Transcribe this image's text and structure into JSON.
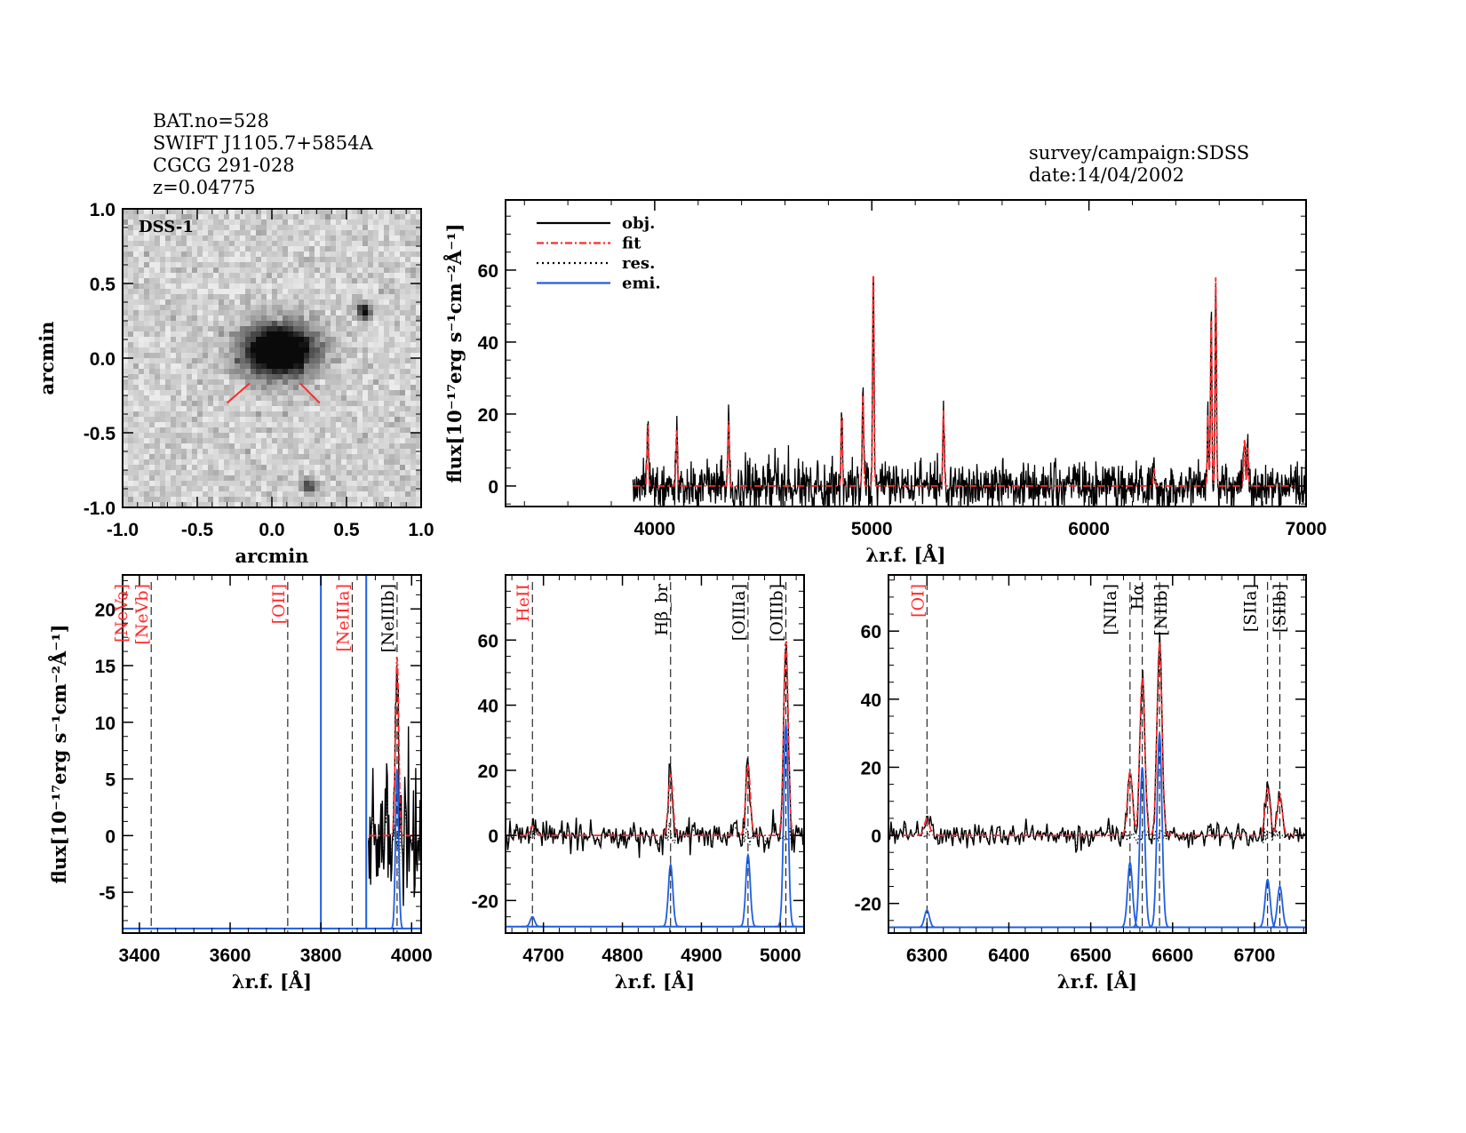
{
  "header": {
    "lines": [
      "BAT.no=528",
      "SWIFT J1105.7+5854A",
      "CGCG 291-028",
      "z=0.04775"
    ],
    "survey": "survey/campaign:SDSS",
    "date": "date:14/04/2002"
  },
  "colors": {
    "obj": "#000000",
    "fit": "#ff2a2a",
    "res": "#000000",
    "emi": "#1f5fe0",
    "undetected_label": "#ff2a2a",
    "detected_label": "#000000"
  },
  "chart_data": [
    {
      "id": "image",
      "type": "heatmap",
      "label": "DSS-1",
      "xlabel": "arcmin",
      "ylabel": "arcmin",
      "xlim": [
        -1.0,
        1.0
      ],
      "ylim": [
        -1.0,
        1.0
      ],
      "xticks": [
        "-1.0",
        "-0.5",
        "0.0",
        "0.5",
        "1.0"
      ],
      "yticks": [
        "-1.0",
        "-0.5",
        "0.0",
        "0.5",
        "1.0"
      ],
      "sources": [
        {
          "x": 0.05,
          "y": 0.05,
          "brightness": 1.0
        },
        {
          "x": 0.62,
          "y": 0.31,
          "brightness": 0.8
        },
        {
          "x": 0.25,
          "y": -0.86,
          "brightness": 0.6
        }
      ],
      "marker_color": "#ff2a2a"
    },
    {
      "id": "full",
      "type": "line",
      "xlabel": "λr.f. [Å]",
      "ylabel": "flux[10⁻¹⁷erg s⁻¹cm⁻²Å⁻¹]",
      "xlim": [
        3313,
        7000
      ],
      "ylim": [
        -5.7,
        79.5
      ],
      "xticks": [
        4000,
        5000,
        6000,
        7000
      ],
      "yticks": [
        0,
        20,
        40,
        60
      ],
      "data_start": 3900,
      "legend": {
        "placement": "top-left",
        "entries": [
          "obj.",
          "fit",
          "res.",
          "emi."
        ]
      },
      "peaks": [
        {
          "x": 3968,
          "y": 17
        },
        {
          "x": 4101,
          "y": 16
        },
        {
          "x": 4340,
          "y": 18
        },
        {
          "x": 4861,
          "y": 20
        },
        {
          "x": 4959,
          "y": 26
        },
        {
          "x": 5007,
          "y": 61
        },
        {
          "x": 5330,
          "y": 21
        },
        {
          "x": 6300,
          "y": 5
        },
        {
          "x": 6548,
          "y": 20
        },
        {
          "x": 6563,
          "y": 48
        },
        {
          "x": 6584,
          "y": 58
        },
        {
          "x": 6716,
          "y": 13
        },
        {
          "x": 6731,
          "y": 11
        }
      ]
    },
    {
      "id": "neon",
      "type": "line",
      "xlabel": "λr.f. [Å]",
      "ylabel": "flux[10⁻¹⁷erg s⁻¹cm⁻²Å⁻¹]",
      "xlim": [
        3363,
        4021
      ],
      "ylim": [
        -8.6,
        23
      ],
      "xticks": [
        3400,
        3600,
        3800,
        4000
      ],
      "yticks": [
        -5,
        0,
        5,
        10,
        15,
        20
      ],
      "data_start": 3905,
      "emi_baseline": -8.2,
      "lines": [
        {
          "label": "[NeVa]",
          "x": 3346,
          "detected": false
        },
        {
          "label": "[NeVb]",
          "x": 3426,
          "detected": false
        },
        {
          "label": "[OII]",
          "x": 3727,
          "detected": false
        },
        {
          "label": "[NeIIIa]",
          "x": 3869,
          "detected": false
        },
        {
          "label": "[NeIIIb]",
          "x": 3968,
          "detected": true,
          "fit_peak": 16,
          "emi_amp": 14
        }
      ]
    },
    {
      "id": "hbeta",
      "type": "line",
      "xlabel": "λr.f. [Å]",
      "xlim": [
        4652,
        5030
      ],
      "ylim": [
        -30,
        80
      ],
      "xticks": [
        4700,
        4800,
        4900,
        5000
      ],
      "yticks": [
        -20,
        0,
        20,
        40,
        60
      ],
      "emi_baseline": -28,
      "lines": [
        {
          "label": "HeII",
          "x": 4686,
          "detected": false,
          "fit_peak": 3,
          "emi_amp": 3
        },
        {
          "label": "Hβ_br",
          "x": 4861,
          "detected": true,
          "fit_peak": 19,
          "emi_amp": 19
        },
        {
          "label": "[OIIIa]",
          "x": 4959,
          "detected": true,
          "fit_peak": 22,
          "emi_amp": 22
        },
        {
          "label": "[OIIIb]",
          "x": 5007,
          "detected": true,
          "fit_peak": 61,
          "emi_amp": 62
        }
      ]
    },
    {
      "id": "halpha",
      "type": "line",
      "xlabel": "λr.f. [Å]",
      "xlim": [
        6253,
        6763
      ],
      "ylim": [
        -28.7,
        76.5
      ],
      "xticks": [
        6300,
        6400,
        6500,
        6600,
        6700
      ],
      "yticks": [
        -20,
        0,
        20,
        40,
        60
      ],
      "emi_baseline": -27,
      "lines": [
        {
          "label": "[OI]",
          "x": 6300,
          "detected": false,
          "fit_peak": 5,
          "emi_amp": 5
        },
        {
          "label": "[NIIa]",
          "x": 6548,
          "detected": true,
          "fit_peak": 19,
          "emi_amp": 19
        },
        {
          "label": "Hα",
          "x": 6563,
          "detected": true,
          "fit_peak": 47,
          "emi_amp": 47
        },
        {
          "label": "[NIIb]",
          "x": 6584,
          "detected": true,
          "fit_peak": 57,
          "emi_amp": 57
        },
        {
          "label": "[SIIa]",
          "x": 6716,
          "detected": true,
          "fit_peak": 14,
          "emi_amp": 14
        },
        {
          "label": "[SIIb]",
          "x": 6731,
          "detected": true,
          "fit_peak": 12,
          "emi_amp": 12
        }
      ]
    }
  ]
}
